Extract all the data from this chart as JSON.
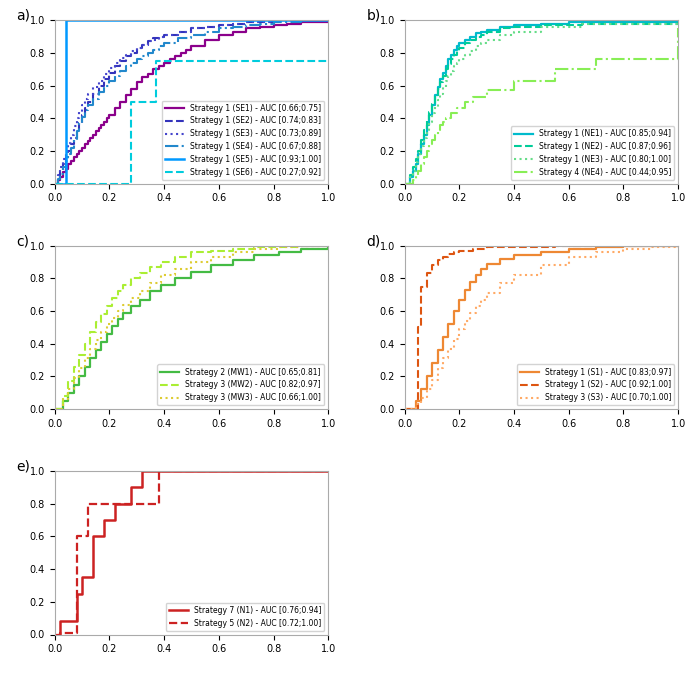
{
  "panel_a": {
    "series": [
      {
        "label": "Strategy 1 (SE1) - AUC [0.66;0.75]",
        "color": "#8B008B",
        "linestyle": "solid",
        "lw": 1.6,
        "x": [
          0,
          0.01,
          0.02,
          0.03,
          0.04,
          0.05,
          0.06,
          0.07,
          0.08,
          0.09,
          0.1,
          0.11,
          0.12,
          0.13,
          0.14,
          0.15,
          0.16,
          0.17,
          0.18,
          0.19,
          0.2,
          0.22,
          0.24,
          0.26,
          0.28,
          0.3,
          0.32,
          0.34,
          0.36,
          0.38,
          0.4,
          0.42,
          0.44,
          0.46,
          0.48,
          0.5,
          0.55,
          0.6,
          0.65,
          0.7,
          0.75,
          0.8,
          0.85,
          0.9,
          0.95,
          1.0
        ],
        "y": [
          0,
          0.02,
          0.04,
          0.07,
          0.09,
          0.12,
          0.14,
          0.16,
          0.18,
          0.2,
          0.22,
          0.24,
          0.26,
          0.28,
          0.3,
          0.32,
          0.34,
          0.36,
          0.38,
          0.4,
          0.42,
          0.46,
          0.5,
          0.54,
          0.58,
          0.62,
          0.65,
          0.67,
          0.7,
          0.72,
          0.74,
          0.76,
          0.78,
          0.8,
          0.82,
          0.84,
          0.88,
          0.91,
          0.93,
          0.95,
          0.96,
          0.97,
          0.98,
          0.99,
          0.99,
          1.0
        ]
      },
      {
        "label": "Strategy 1 (SE2) - AUC [0.74;0.83]",
        "color": "#3333bb",
        "linestyle": "dashed",
        "lw": 1.5,
        "x": [
          0,
          0.01,
          0.02,
          0.03,
          0.04,
          0.05,
          0.06,
          0.07,
          0.08,
          0.09,
          0.1,
          0.11,
          0.12,
          0.14,
          0.16,
          0.18,
          0.2,
          0.22,
          0.24,
          0.26,
          0.28,
          0.3,
          0.32,
          0.34,
          0.36,
          0.38,
          0.4,
          0.45,
          0.5,
          0.55,
          0.6,
          0.65,
          0.7,
          0.75,
          0.8,
          0.85,
          0.9,
          0.95,
          1.0
        ],
        "y": [
          0,
          0.04,
          0.08,
          0.12,
          0.16,
          0.2,
          0.24,
          0.28,
          0.33,
          0.37,
          0.42,
          0.46,
          0.5,
          0.55,
          0.6,
          0.64,
          0.68,
          0.72,
          0.75,
          0.78,
          0.8,
          0.83,
          0.85,
          0.87,
          0.89,
          0.9,
          0.91,
          0.93,
          0.95,
          0.96,
          0.97,
          0.98,
          0.99,
          0.99,
          1.0,
          1.0,
          1.0,
          1.0,
          1.0
        ]
      },
      {
        "label": "Strategy 1 (SE3) - AUC [0.73;0.89]",
        "color": "#4444cc",
        "linestyle": "dotted",
        "lw": 1.5,
        "x": [
          0,
          0.01,
          0.02,
          0.03,
          0.04,
          0.05,
          0.06,
          0.07,
          0.08,
          0.09,
          0.1,
          0.11,
          0.12,
          0.14,
          0.16,
          0.18,
          0.2,
          0.22,
          0.24,
          0.26,
          0.28,
          0.3,
          0.32,
          0.34,
          0.36,
          0.38,
          0.4,
          0.45,
          0.5,
          0.55,
          0.6,
          0.65,
          0.7,
          0.75,
          0.8,
          0.85,
          0.9,
          0.95,
          1.0
        ],
        "y": [
          0,
          0.05,
          0.1,
          0.15,
          0.2,
          0.25,
          0.3,
          0.35,
          0.4,
          0.44,
          0.48,
          0.52,
          0.55,
          0.59,
          0.63,
          0.67,
          0.71,
          0.74,
          0.77,
          0.79,
          0.81,
          0.83,
          0.85,
          0.87,
          0.88,
          0.9,
          0.91,
          0.93,
          0.95,
          0.96,
          0.97,
          0.98,
          0.99,
          0.99,
          1.0,
          1.0,
          1.0,
          1.0,
          1.0
        ]
      },
      {
        "label": "Strategy 1 (SE4) - AUC [0.67;0.88]",
        "color": "#2288cc",
        "linestyle": "dashdot",
        "lw": 1.5,
        "x": [
          0,
          0.01,
          0.02,
          0.03,
          0.04,
          0.05,
          0.06,
          0.07,
          0.08,
          0.09,
          0.1,
          0.11,
          0.12,
          0.14,
          0.16,
          0.18,
          0.2,
          0.22,
          0.24,
          0.26,
          0.28,
          0.3,
          0.32,
          0.34,
          0.36,
          0.38,
          0.4,
          0.45,
          0.5,
          0.55,
          0.6,
          0.65,
          0.7,
          0.75,
          0.8,
          0.85,
          0.9,
          0.95,
          1.0
        ],
        "y": [
          0,
          0.03,
          0.06,
          0.1,
          0.14,
          0.18,
          0.22,
          0.27,
          0.32,
          0.37,
          0.41,
          0.45,
          0.48,
          0.52,
          0.56,
          0.6,
          0.63,
          0.66,
          0.69,
          0.72,
          0.74,
          0.76,
          0.78,
          0.8,
          0.82,
          0.84,
          0.86,
          0.89,
          0.91,
          0.93,
          0.95,
          0.96,
          0.97,
          0.98,
          0.99,
          0.99,
          1.0,
          1.0,
          1.0
        ]
      },
      {
        "label": "Strategy 1 (SE5) - AUC [0.93;1.00]",
        "color": "#0099ff",
        "linestyle": "solid",
        "lw": 1.8,
        "x": [
          0,
          0.04,
          0.04,
          0.38,
          0.38,
          1.0
        ],
        "y": [
          0,
          0,
          1.0,
          1.0,
          1.0,
          1.0
        ]
      },
      {
        "label": "Strategy 1 (SE6) - AUC [0.27;0.92]",
        "color": "#00ccdd",
        "linestyle": "dashed",
        "lw": 1.5,
        "x": [
          0,
          0.28,
          0.28,
          0.37,
          0.37,
          0.8,
          0.8,
          1.0
        ],
        "y": [
          0,
          0,
          0.5,
          0.5,
          0.75,
          0.75,
          0.75,
          0.75
        ]
      }
    ]
  },
  "panel_b": {
    "series": [
      {
        "label": "Strategy 1 (NE1) - AUC [0.85;0.94]",
        "color": "#00bbcc",
        "linestyle": "solid",
        "lw": 1.6,
        "x": [
          0,
          0.02,
          0.03,
          0.04,
          0.05,
          0.06,
          0.07,
          0.08,
          0.09,
          0.1,
          0.11,
          0.12,
          0.13,
          0.14,
          0.15,
          0.16,
          0.17,
          0.18,
          0.19,
          0.2,
          0.22,
          0.24,
          0.26,
          0.28,
          0.3,
          0.35,
          0.4,
          0.5,
          0.6,
          1.0
        ],
        "y": [
          0,
          0.04,
          0.08,
          0.12,
          0.18,
          0.24,
          0.3,
          0.36,
          0.42,
          0.48,
          0.54,
          0.59,
          0.64,
          0.68,
          0.72,
          0.76,
          0.79,
          0.82,
          0.84,
          0.86,
          0.88,
          0.9,
          0.92,
          0.93,
          0.94,
          0.96,
          0.97,
          0.98,
          0.99,
          1.0
        ]
      },
      {
        "label": "Strategy 1 (NE2) - AUC [0.87;0.96]",
        "color": "#00cc99",
        "linestyle": "dashed",
        "lw": 1.5,
        "x": [
          0,
          0.02,
          0.03,
          0.04,
          0.05,
          0.06,
          0.07,
          0.08,
          0.09,
          0.1,
          0.11,
          0.12,
          0.13,
          0.14,
          0.15,
          0.16,
          0.17,
          0.18,
          0.19,
          0.2,
          0.22,
          0.24,
          0.26,
          0.28,
          0.3,
          0.35,
          0.4,
          0.5,
          0.65,
          1.0
        ],
        "y": [
          0,
          0.05,
          0.1,
          0.15,
          0.2,
          0.27,
          0.33,
          0.39,
          0.44,
          0.49,
          0.54,
          0.58,
          0.62,
          0.66,
          0.7,
          0.73,
          0.76,
          0.79,
          0.81,
          0.83,
          0.86,
          0.88,
          0.9,
          0.91,
          0.93,
          0.95,
          0.96,
          0.97,
          0.98,
          0.99
        ]
      },
      {
        "label": "Strategy 1 (NE3) - AUC [0.80;1.00]",
        "color": "#66dd88",
        "linestyle": "dotted",
        "lw": 1.5,
        "x": [
          0,
          0.02,
          0.03,
          0.04,
          0.05,
          0.06,
          0.07,
          0.08,
          0.09,
          0.1,
          0.11,
          0.12,
          0.13,
          0.14,
          0.15,
          0.16,
          0.17,
          0.18,
          0.19,
          0.2,
          0.22,
          0.24,
          0.26,
          0.28,
          0.3,
          0.35,
          0.4,
          0.5,
          0.65,
          1.0
        ],
        "y": [
          0,
          0.04,
          0.08,
          0.13,
          0.18,
          0.23,
          0.28,
          0.33,
          0.38,
          0.43,
          0.47,
          0.51,
          0.55,
          0.59,
          0.63,
          0.66,
          0.69,
          0.72,
          0.74,
          0.76,
          0.79,
          0.81,
          0.84,
          0.86,
          0.88,
          0.91,
          0.93,
          0.96,
          0.98,
          1.0
        ]
      },
      {
        "label": "Strategy 4 (NE4) - AUC [0.44;0.95]",
        "color": "#88ee55",
        "linestyle": "dashdot",
        "lw": 1.5,
        "x": [
          0,
          0.03,
          0.04,
          0.05,
          0.06,
          0.07,
          0.08,
          0.09,
          0.1,
          0.11,
          0.12,
          0.13,
          0.14,
          0.15,
          0.17,
          0.19,
          0.22,
          0.25,
          0.3,
          0.4,
          0.55,
          0.7,
          1.0
        ],
        "y": [
          0,
          0.02,
          0.05,
          0.08,
          0.12,
          0.16,
          0.2,
          0.24,
          0.27,
          0.3,
          0.33,
          0.36,
          0.38,
          0.4,
          0.43,
          0.46,
          0.5,
          0.53,
          0.57,
          0.63,
          0.7,
          0.76,
          0.95
        ]
      }
    ]
  },
  "panel_c": {
    "series": [
      {
        "label": "Strategy 2 (MW1) - AUC [0.65;0.81]",
        "color": "#44bb44",
        "linestyle": "solid",
        "lw": 1.6,
        "x": [
          0,
          0.03,
          0.05,
          0.07,
          0.09,
          0.11,
          0.13,
          0.15,
          0.17,
          0.19,
          0.21,
          0.23,
          0.25,
          0.28,
          0.31,
          0.35,
          0.39,
          0.44,
          0.5,
          0.57,
          0.65,
          0.73,
          0.82,
          0.9,
          1.0
        ],
        "y": [
          0,
          0.05,
          0.1,
          0.15,
          0.2,
          0.26,
          0.31,
          0.36,
          0.41,
          0.46,
          0.51,
          0.55,
          0.59,
          0.63,
          0.67,
          0.72,
          0.76,
          0.8,
          0.84,
          0.88,
          0.91,
          0.94,
          0.96,
          0.98,
          1.0
        ]
      },
      {
        "label": "Strategy 3 (MW2) - AUC [0.82;0.97]",
        "color": "#aaee33",
        "linestyle": "dashed",
        "lw": 1.5,
        "x": [
          0,
          0.03,
          0.05,
          0.07,
          0.09,
          0.11,
          0.13,
          0.15,
          0.17,
          0.19,
          0.21,
          0.23,
          0.25,
          0.28,
          0.31,
          0.35,
          0.39,
          0.44,
          0.5,
          0.57,
          0.65,
          0.73,
          0.82,
          0.9,
          1.0
        ],
        "y": [
          0,
          0.08,
          0.17,
          0.26,
          0.33,
          0.4,
          0.47,
          0.53,
          0.58,
          0.63,
          0.68,
          0.72,
          0.76,
          0.8,
          0.83,
          0.87,
          0.9,
          0.93,
          0.96,
          0.97,
          0.98,
          0.99,
          0.99,
          1.0,
          1.0
        ]
      },
      {
        "label": "Strategy 3 (MW3) - AUC [0.66;1.00]",
        "color": "#ddcc33",
        "linestyle": "dotted",
        "lw": 1.5,
        "x": [
          0,
          0.03,
          0.05,
          0.07,
          0.09,
          0.11,
          0.13,
          0.15,
          0.17,
          0.19,
          0.21,
          0.23,
          0.25,
          0.28,
          0.31,
          0.35,
          0.39,
          0.44,
          0.5,
          0.57,
          0.65,
          0.73,
          0.82,
          0.9,
          1.0
        ],
        "y": [
          0,
          0.06,
          0.12,
          0.19,
          0.25,
          0.31,
          0.37,
          0.42,
          0.47,
          0.52,
          0.56,
          0.6,
          0.64,
          0.68,
          0.72,
          0.77,
          0.82,
          0.86,
          0.9,
          0.93,
          0.96,
          0.98,
          0.99,
          1.0,
          1.0
        ]
      }
    ]
  },
  "panel_d": {
    "series": [
      {
        "label": "Strategy 1 (S1) - AUC [0.83;0.97]",
        "color": "#ee8833",
        "linestyle": "solid",
        "lw": 1.6,
        "x": [
          0,
          0.04,
          0.06,
          0.08,
          0.1,
          0.12,
          0.14,
          0.16,
          0.18,
          0.2,
          0.22,
          0.24,
          0.26,
          0.28,
          0.3,
          0.35,
          0.4,
          0.5,
          0.6,
          0.7,
          0.8,
          0.9,
          1.0
        ],
        "y": [
          0,
          0.05,
          0.12,
          0.2,
          0.28,
          0.36,
          0.44,
          0.52,
          0.6,
          0.67,
          0.73,
          0.78,
          0.82,
          0.86,
          0.89,
          0.92,
          0.94,
          0.96,
          0.98,
          0.99,
          1.0,
          1.0,
          1.0
        ]
      },
      {
        "label": "Strategy 1 (S2) - AUC [0.92;1.00]",
        "color": "#dd5511",
        "linestyle": "dashed",
        "lw": 1.5,
        "x": [
          0,
          0.04,
          0.05,
          0.06,
          0.08,
          0.1,
          0.12,
          0.14,
          0.16,
          0.18,
          0.2,
          0.22,
          0.25,
          0.3,
          0.4,
          0.55,
          0.7,
          1.0
        ],
        "y": [
          0,
          0.0,
          0.5,
          0.75,
          0.83,
          0.88,
          0.91,
          0.93,
          0.95,
          0.96,
          0.97,
          0.97,
          0.98,
          0.99,
          0.99,
          1.0,
          1.0,
          1.0
        ]
      },
      {
        "label": "Strategy 3 (S3) - AUC [0.70;1.00]",
        "color": "#ffaa66",
        "linestyle": "dotted",
        "lw": 1.5,
        "x": [
          0,
          0.04,
          0.06,
          0.08,
          0.1,
          0.12,
          0.14,
          0.16,
          0.18,
          0.2,
          0.22,
          0.24,
          0.26,
          0.28,
          0.3,
          0.35,
          0.4,
          0.5,
          0.6,
          0.7,
          0.8,
          0.9,
          1.0
        ],
        "y": [
          0,
          0.03,
          0.07,
          0.12,
          0.18,
          0.25,
          0.31,
          0.37,
          0.43,
          0.49,
          0.54,
          0.59,
          0.63,
          0.67,
          0.71,
          0.77,
          0.82,
          0.88,
          0.93,
          0.96,
          0.98,
          0.99,
          1.0
        ]
      }
    ]
  },
  "panel_e": {
    "series": [
      {
        "label": "Strategy 7 (N1) - AUC [0.76;0.94]",
        "color": "#cc2222",
        "linestyle": "solid",
        "lw": 1.8,
        "x": [
          0,
          0.02,
          0.02,
          0.08,
          0.08,
          0.1,
          0.1,
          0.14,
          0.14,
          0.18,
          0.18,
          0.22,
          0.22,
          0.28,
          0.28,
          0.32,
          0.32,
          0.38,
          0.38,
          1.0
        ],
        "y": [
          0,
          0,
          0.08,
          0.08,
          0.25,
          0.25,
          0.35,
          0.35,
          0.6,
          0.6,
          0.7,
          0.7,
          0.8,
          0.8,
          0.9,
          0.9,
          1.0,
          1.0,
          1.0,
          1.0
        ]
      },
      {
        "label": "Strategy 5 (N2) - AUC [0.72;1.00]",
        "color": "#cc2222",
        "linestyle": "dashed",
        "lw": 1.6,
        "x": [
          0,
          0.02,
          0.02,
          0.08,
          0.08,
          0.12,
          0.12,
          0.38,
          0.38,
          1.0
        ],
        "y": [
          0,
          0,
          0.01,
          0.01,
          0.6,
          0.6,
          0.8,
          0.8,
          1.0,
          1.0
        ]
      }
    ]
  },
  "legend_fontsize": 5.5,
  "tick_fontsize": 7,
  "label_fontsize": 10
}
